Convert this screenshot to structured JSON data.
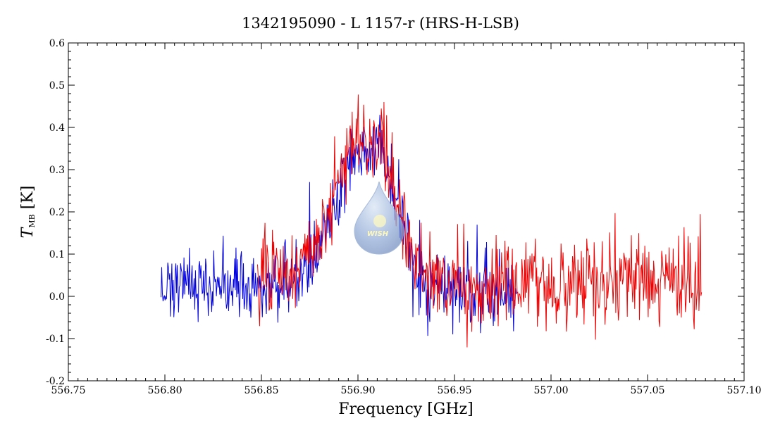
{
  "chart_data": {
    "type": "line",
    "title": "1342195090 - L 1157-r (HRS-H-LSB)",
    "xlabel": "Frequency [GHz]",
    "ylabel": {
      "symbol": "T",
      "subscript": "MB",
      "unit": "[K]"
    },
    "xlim": [
      556.75,
      557.1
    ],
    "ylim": [
      -0.2,
      0.6
    ],
    "x_ticks": [
      "556.75",
      "556.80",
      "556.85",
      "556.90",
      "556.95",
      "557.00",
      "557.05",
      "557.10"
    ],
    "y_ticks": [
      "-0.2",
      "-0.1",
      "0.0",
      "0.1",
      "0.2",
      "0.3",
      "0.4",
      "0.5",
      "0.6"
    ],
    "grid": false,
    "logo_text": "WISH",
    "series": [
      {
        "color": "#0000e0",
        "x_start": 556.798,
        "x_end": 556.982,
        "profile": [
          [
            556.798,
            0.03
          ],
          [
            556.85,
            0.02
          ],
          [
            556.868,
            0.04
          ],
          [
            556.88,
            0.12
          ],
          [
            556.89,
            0.25
          ],
          [
            556.896,
            0.33
          ],
          [
            556.905,
            0.35
          ],
          [
            556.912,
            0.33
          ],
          [
            556.918,
            0.26
          ],
          [
            556.924,
            0.15
          ],
          [
            556.93,
            0.05
          ],
          [
            556.94,
            0.01
          ],
          [
            556.982,
            0.0
          ]
        ],
        "noise_sigma": 0.045
      },
      {
        "color": "#f00000",
        "x_start": 556.848,
        "x_end": 557.078,
        "profile": [
          [
            556.848,
            0.06
          ],
          [
            556.868,
            0.06
          ],
          [
            556.88,
            0.14
          ],
          [
            556.89,
            0.28
          ],
          [
            556.896,
            0.36
          ],
          [
            556.905,
            0.38
          ],
          [
            556.912,
            0.36
          ],
          [
            556.918,
            0.27
          ],
          [
            556.924,
            0.17
          ],
          [
            556.93,
            0.07
          ],
          [
            556.94,
            0.03
          ],
          [
            557.0,
            0.02
          ],
          [
            557.04,
            0.05
          ],
          [
            557.078,
            0.04
          ]
        ],
        "noise_sigma": 0.05
      }
    ]
  }
}
